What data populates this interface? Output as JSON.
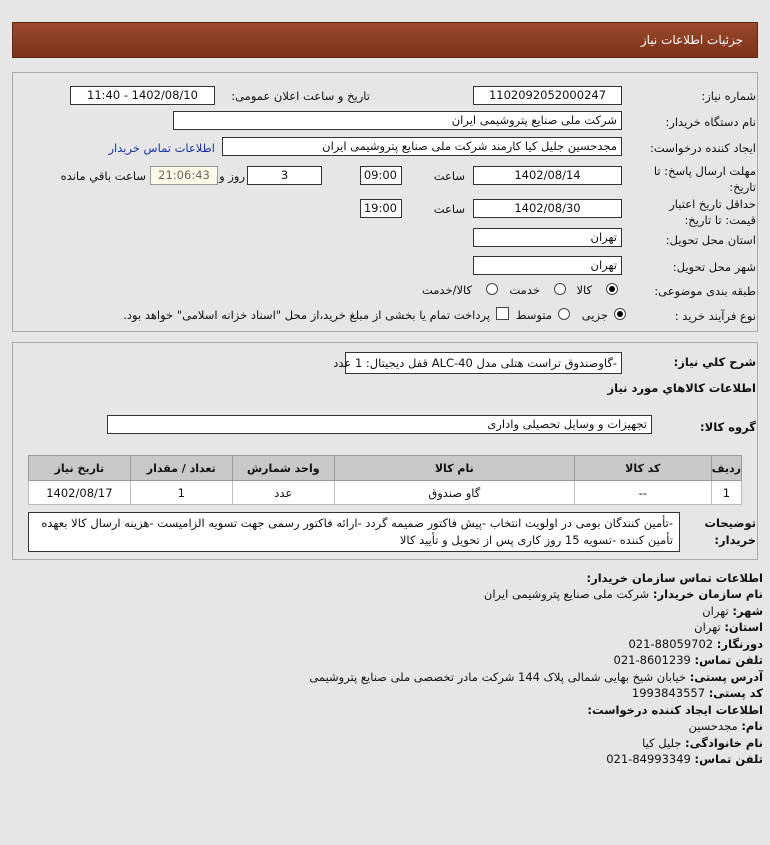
{
  "header": {
    "title": "جزئیات اطلاعات نیاز"
  },
  "form": {
    "need_number_label": "شماره نیاز:",
    "need_number": "1102092052000247",
    "announce_label": "تاریخ و ساعت اعلان عمومی:",
    "announce_value": "1402/08/10 - 11:40",
    "buyer_label": "نام دستگاه خریدار:",
    "buyer": "شرکت ملی صنایع پتروشیمی ایران",
    "creator_label": "ایجاد کننده درخواست:",
    "creator": "مجدحسین جلیل کیا کارمند شرکت ملی صنایع پتروشیمی ایران",
    "contact_link": "اطلاعات تماس خریدار",
    "deadline_label": "مهلت ارسال پاسخ: تا تاریخ:",
    "deadline_date": "1402/08/14",
    "time_label": "ساعت",
    "deadline_time": "09:00",
    "days": "3",
    "days_label": "روز و",
    "remaining": "21:06:43",
    "remaining_label": "ساعت باقي مانده",
    "validity_label": "حداقل تاریخ اعتبار قیمت: تا تاریخ:",
    "validity_date": "1402/08/30",
    "validity_time": "19:00",
    "province_label": "استان محل تحویل:",
    "province": "تهران",
    "city_label": "شهر محل تحویل:",
    "city": "تهران",
    "category_label": "طبقه بندی موضوعی:",
    "category_options": [
      "کالا",
      "خدمت",
      "کالا/خدمت"
    ],
    "category_selected": "کالا",
    "process_label": "نوع فرآیند خرید :",
    "process_options": [
      "جزیی",
      "متوسط"
    ],
    "process_selected": "جزیی",
    "payment_note": "پرداخت تمام یا بخشی از مبلغ خرید،از محل \"اسناد خزانه اسلامی\" خواهد بود."
  },
  "goods": {
    "summary_label": "شرح كلي نياز:",
    "summary": "-گاوصندوق تراست هتلی مدل ALC-40 قفل دیجیتال: 1 عدد",
    "section_title": "اطلاعات كالاهاي مورد نياز",
    "group_label": "گروه کالا:",
    "group": "تجهیزات و وسایل تحصیلی واداری",
    "columns": [
      "ردیف",
      "کد کالا",
      "نام کالا",
      "واحد شمارش",
      "تعداد / مقدار",
      "تاریخ نیاز"
    ],
    "rows": [
      [
        "1",
        "--",
        "گاو صندوق",
        "عدد",
        "1",
        "1402/08/17"
      ]
    ],
    "notes_label": "توضیحات خریدار:",
    "notes": "-تأمین کنندگان بومی در اولویت انتخاب -پیش فاکتور ضمیمه گردد -ارائه فاکتور رسمی جهت تسویه الزامیست -هزینه ارسال کالا بعهده تأمین کننده -تسویه 15 روز کاری پس از تحویل و تأیید کالا"
  },
  "contact": {
    "title": "اطلاعات تماس سازمان خریدار:",
    "lines": [
      {
        "k": "نام سازمان خریدار:",
        "v": "شرکت ملی صنایع پتروشیمی ایران"
      },
      {
        "k": "شهر:",
        "v": "تهران"
      },
      {
        "k": "استان:",
        "v": "تهران"
      },
      {
        "k": "دورنگار:",
        "v": "88059702-021"
      },
      {
        "k": "تلفن تماس:",
        "v": "8601239-021"
      },
      {
        "k": "آدرس پستی:",
        "v": "خیابان شیخ بهایی شمالی پلاک 144 شرکت مادر تخصصی ملی صنایع پتروشیمی"
      },
      {
        "k": "کد پستی:",
        "v": "1993843557"
      }
    ],
    "creator_title": "اطلاعات ایجاد کننده درخواست:",
    "creator_lines": [
      {
        "k": "نام:",
        "v": "مجدحسین"
      },
      {
        "k": "نام خانوادگی:",
        "v": "جلیل کیا"
      },
      {
        "k": "تلفن تماس:",
        "v": "84993349-021"
      }
    ]
  }
}
